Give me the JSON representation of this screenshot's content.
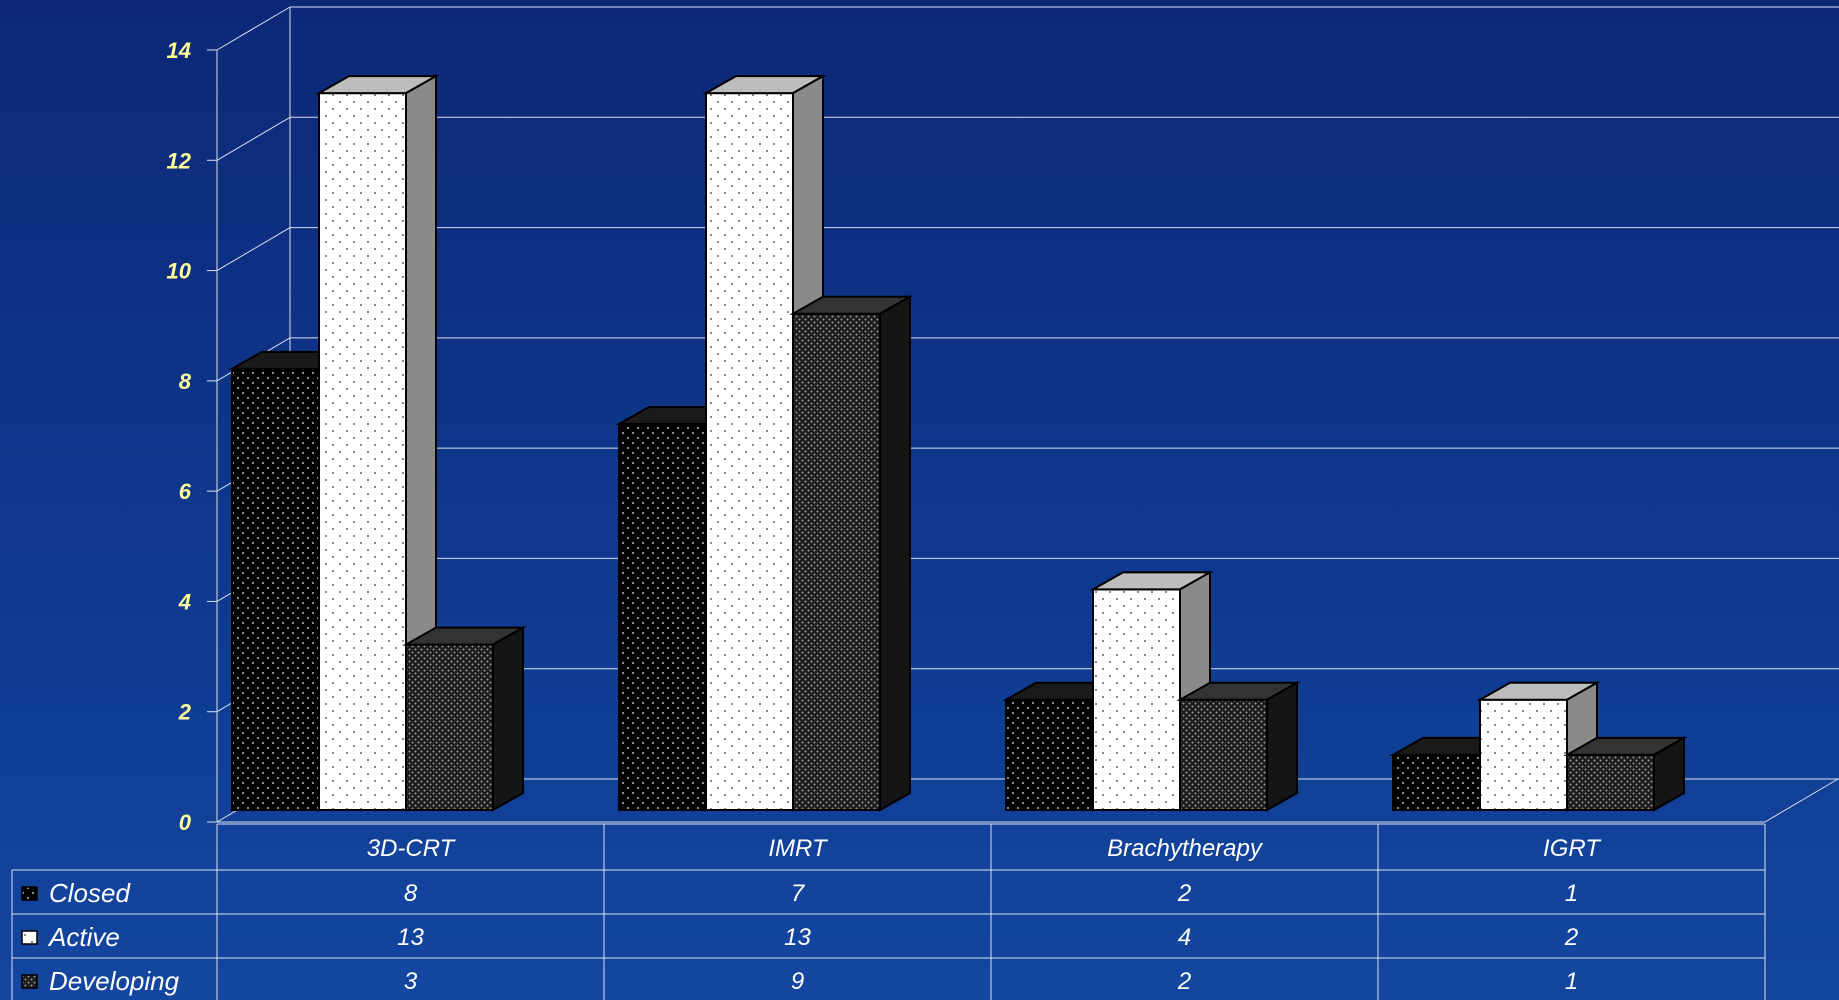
{
  "chart_data": {
    "type": "bar",
    "categories": [
      "3D-CRT",
      "IMRT",
      "Brachytherapy",
      "IGRT"
    ],
    "series": [
      {
        "name": "Closed",
        "values": [
          8,
          7,
          2,
          1
        ]
      },
      {
        "name": "Active",
        "values": [
          13,
          13,
          4,
          2
        ]
      },
      {
        "name": "Developing",
        "values": [
          3,
          9,
          2,
          1
        ]
      }
    ],
    "yticks": [
      0,
      2,
      4,
      6,
      8,
      10,
      12,
      14
    ],
    "ylim": [
      0,
      14
    ],
    "grid": true,
    "legend": "data-table-left",
    "colors": {
      "background_top": "#0d2878",
      "background_bottom": "#1446a0",
      "tick_label": "#ffff99",
      "grid_line": "#d9e0ee",
      "closed": "#000000",
      "active": "#ffffff",
      "developing": "#2a2a2a"
    }
  }
}
